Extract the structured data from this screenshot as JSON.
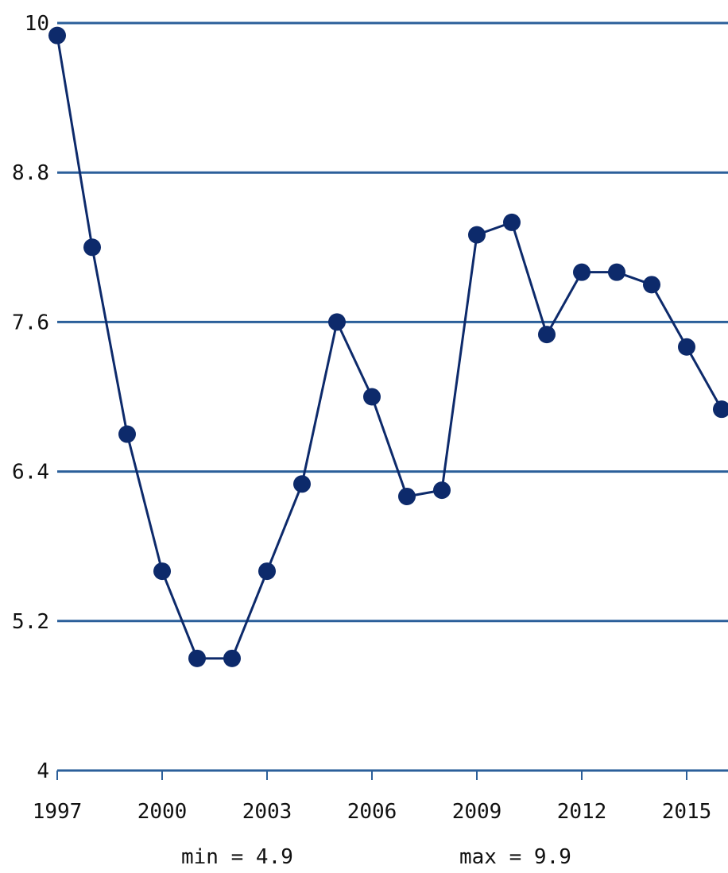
{
  "chart_data": {
    "type": "line",
    "title": "",
    "xlabel": "",
    "ylabel": "",
    "x": [
      1997,
      1998,
      1999,
      2000,
      2001,
      2002,
      2003,
      2004,
      2005,
      2006,
      2007,
      2008,
      2009,
      2010,
      2011,
      2012,
      2013,
      2014,
      2015,
      2016
    ],
    "series": [
      {
        "values": [
          9.9,
          8.2,
          6.7,
          5.6,
          4.9,
          4.9,
          5.6,
          6.3,
          7.6,
          7.0,
          6.2,
          6.25,
          8.3,
          8.4,
          7.5,
          8.0,
          8.0,
          7.9,
          7.4,
          6.9
        ],
        "color": "#0d2a6b"
      }
    ],
    "ylim": [
      4,
      10
    ],
    "xlim": [
      1997,
      2016
    ],
    "y_ticks": [
      "4",
      "5.2",
      "6.4",
      "7.6",
      "8.8",
      "10"
    ],
    "x_ticks": [
      "1997",
      "2000",
      "2003",
      "2006",
      "2009",
      "2012",
      "2015"
    ],
    "grid": true,
    "grid_color": "#2b5f9a"
  },
  "footer": {
    "min_label": "min = 4.9",
    "max_label": "max = 9.9"
  }
}
